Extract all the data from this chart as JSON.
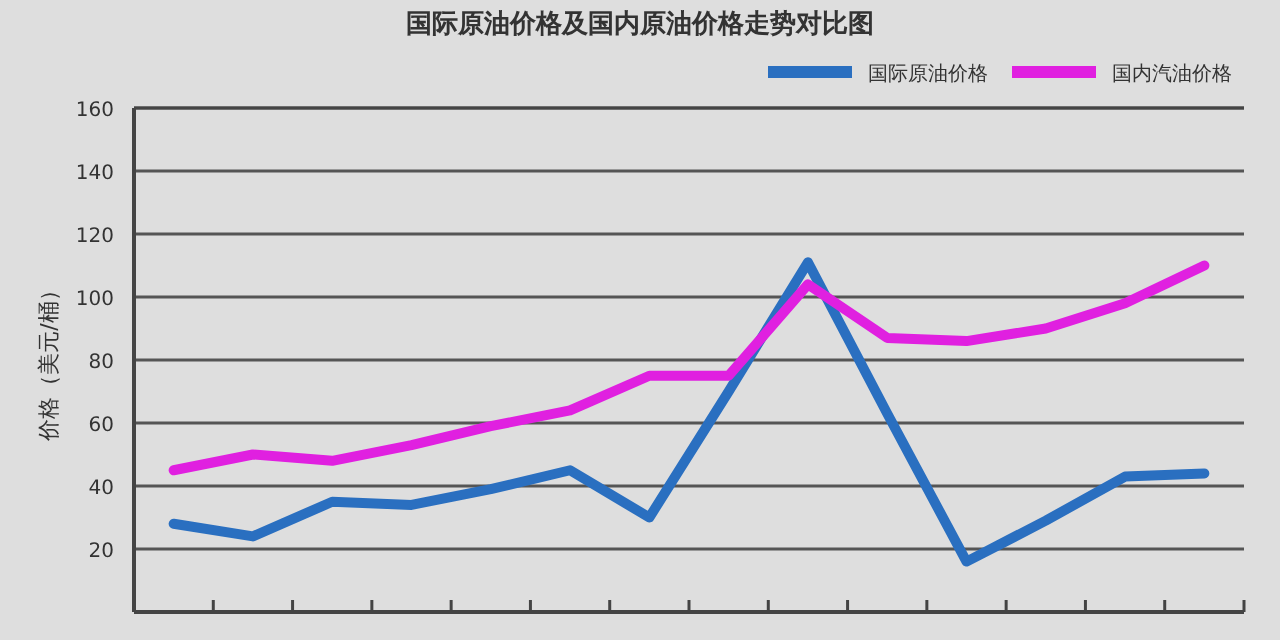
{
  "chart_data": {
    "type": "line",
    "title": "国际原油价格及国内原油价格走势对比图",
    "ylabel": "价格（美元/桶）",
    "categories": [
      null,
      null,
      null,
      null,
      null,
      null,
      null,
      null,
      null,
      null,
      null,
      null,
      null,
      null
    ],
    "series": [
      {
        "name": "国际原油价格",
        "color": "#2a6fc0",
        "values": [
          28,
          24,
          35,
          34,
          39,
          45,
          30,
          70,
          111,
          63,
          16,
          29,
          43,
          44
        ]
      },
      {
        "name": "国内汽油价格",
        "color": "#e020e0",
        "values": [
          45,
          50,
          48,
          53,
          59,
          64,
          75,
          75,
          104,
          87,
          86,
          90,
          98,
          110
        ]
      }
    ],
    "ylim": [
      0,
      160
    ],
    "yticks": [
      20,
      40,
      60,
      80,
      100,
      120,
      140,
      160
    ],
    "grid": "y",
    "legend": "top right",
    "marker": "none",
    "line_style": "solid"
  }
}
